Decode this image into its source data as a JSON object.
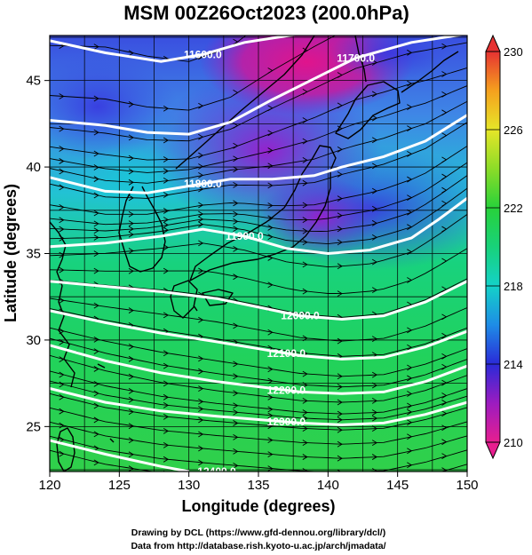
{
  "title": "MSM 00Z26Oct2023 (200.0hPa)",
  "xaxis": {
    "label": "Longitude (degrees)",
    "range": [
      120,
      150
    ],
    "ticks": [
      120,
      125,
      130,
      135,
      140,
      145,
      150
    ],
    "tick_labels": [
      "120",
      "125",
      "130",
      "135",
      "140",
      "145",
      "150"
    ]
  },
  "yaxis": {
    "label": "Latitude  (degrees)",
    "range": [
      22.4,
      47.6
    ],
    "ticks": [
      25,
      30,
      35,
      40,
      45
    ],
    "tick_labels": [
      "25",
      "30",
      "35",
      "40",
      "45"
    ]
  },
  "colorbar": {
    "range": [
      210,
      230
    ],
    "tick_labels": [
      "230",
      "226",
      "222",
      "218",
      "214",
      "210"
    ],
    "ticks": [
      230,
      226,
      222,
      218,
      214,
      210
    ],
    "colors": {
      "210": "#e71e8f",
      "212": "#9c1cc0",
      "214": "#2a2ad8",
      "216": "#1e8ce6",
      "218": "#14d2c8",
      "220": "#18d27a",
      "222": "#28d23a",
      "224": "#8cdc28",
      "226": "#e6e628",
      "228": "#f5a01e",
      "230": "#e63232"
    }
  },
  "contours": [
    {
      "label": "11600.0",
      "points": [
        [
          120,
          47.3
        ],
        [
          124,
          46.6
        ],
        [
          128,
          46.1
        ],
        [
          131,
          46.5
        ],
        [
          134,
          47.2
        ],
        [
          138,
          47.7
        ]
      ]
    },
    {
      "label": "11700.0",
      "points": [
        [
          120,
          42.7
        ],
        [
          124,
          42.4
        ],
        [
          127,
          42.0
        ],
        [
          130,
          41.9
        ],
        [
          133,
          42.6
        ],
        [
          136,
          43.9
        ],
        [
          139,
          45.1
        ],
        [
          142,
          46.3
        ],
        [
          146,
          47.2
        ],
        [
          150,
          47.7
        ]
      ]
    },
    {
      "label": "11800.0",
      "points": [
        [
          120,
          39.4
        ],
        [
          124,
          38.6
        ],
        [
          127,
          38.5
        ],
        [
          130,
          38.9
        ],
        [
          133,
          39.3
        ],
        [
          136,
          39.3
        ],
        [
          139,
          39.5
        ],
        [
          141,
          40.0
        ],
        [
          144,
          40.6
        ],
        [
          147,
          41.5
        ],
        [
          150,
          43.0
        ]
      ]
    },
    {
      "label": "11900.0",
      "points": [
        [
          120,
          35.4
        ],
        [
          124,
          35.6
        ],
        [
          128,
          36.0
        ],
        [
          131,
          36.4
        ],
        [
          134,
          36.0
        ],
        [
          137,
          35.3
        ],
        [
          140,
          35.0
        ],
        [
          143,
          35.2
        ],
        [
          146,
          35.9
        ],
        [
          148,
          37.0
        ],
        [
          150,
          38.2
        ]
      ]
    },
    {
      "label": "12000.0",
      "points": [
        [
          120,
          33.4
        ],
        [
          124,
          33.1
        ],
        [
          128,
          32.8
        ],
        [
          132,
          32.4
        ],
        [
          135,
          31.9
        ],
        [
          138,
          31.4
        ],
        [
          141,
          31.2
        ],
        [
          144,
          31.4
        ],
        [
          147,
          32.2
        ],
        [
          150,
          33.4
        ]
      ]
    },
    {
      "label": "12100.0",
      "points": [
        [
          120,
          31.7
        ],
        [
          124,
          31.0
        ],
        [
          128,
          30.4
        ],
        [
          132,
          29.9
        ],
        [
          135,
          29.5
        ],
        [
          138,
          29.1
        ],
        [
          141,
          28.9
        ],
        [
          144,
          29.0
        ],
        [
          147,
          29.6
        ],
        [
          150,
          30.5
        ]
      ]
    },
    {
      "label": "12200.0",
      "points": [
        [
          120,
          29.7
        ],
        [
          124,
          28.8
        ],
        [
          128,
          28.1
        ],
        [
          132,
          27.6
        ],
        [
          135,
          27.3
        ],
        [
          138,
          27.0
        ],
        [
          141,
          26.9
        ],
        [
          144,
          27.0
        ],
        [
          147,
          27.6
        ],
        [
          150,
          28.5
        ]
      ]
    },
    {
      "label": "12300.0",
      "points": [
        [
          120,
          27.2
        ],
        [
          124,
          26.4
        ],
        [
          128,
          25.9
        ],
        [
          132,
          25.6
        ],
        [
          135,
          25.4
        ],
        [
          138,
          25.2
        ],
        [
          141,
          25.1
        ],
        [
          144,
          25.2
        ],
        [
          147,
          25.7
        ],
        [
          150,
          26.4
        ]
      ]
    },
    {
      "label": "12400.0",
      "points": [
        [
          120,
          24.2
        ],
        [
          124,
          23.4
        ],
        [
          128,
          22.7
        ],
        [
          130,
          22.4
        ]
      ]
    }
  ],
  "credits": [
    "Drawing by DCL (https://www.gfd-dennou.org/library/dcl/)",
    "Data from http://database.rish.kyoto-u.ac.jp/arch/jmadata/"
  ]
}
